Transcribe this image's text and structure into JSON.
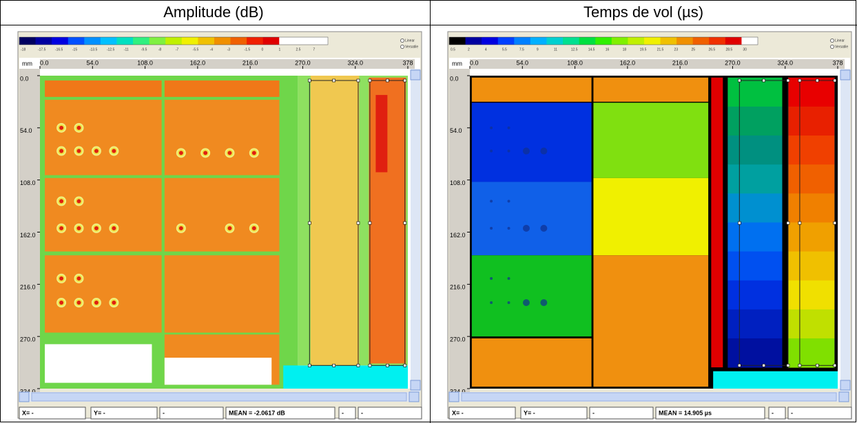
{
  "panels": [
    {
      "title": "Amplitude (dB)",
      "colorbar_labels": [
        "-18",
        "-17.5",
        "-16.5",
        "-15",
        "-13.5",
        "-12.5",
        "-11",
        "-9.5",
        "-8",
        "-7",
        "-5.5",
        "-4",
        "-3",
        "-1.5",
        "0",
        "1",
        "2.5",
        "7"
      ],
      "options": [
        "Linear",
        "Versatile"
      ],
      "x_unit": "mm",
      "x_ticks": [
        "0.0",
        "54.0",
        "108.0",
        "162.0",
        "216.0",
        "270.0",
        "324.0",
        "378"
      ],
      "y_ticks": [
        "0.0",
        "54.0",
        "108.0",
        "162.0",
        "216.0",
        "270.0",
        "324.0"
      ],
      "status": [
        "X= -",
        "Y= -",
        "-",
        "MEAN = -2.0617 dB",
        "-",
        "-"
      ]
    },
    {
      "title": "Temps de vol (µs)",
      "colorbar_labels": [
        "0.5",
        "2",
        "4",
        "5.5",
        "7.5",
        "9",
        "11",
        "12.5",
        "14.5",
        "16",
        "18",
        "19.5",
        "21.5",
        "23",
        "25",
        "26.5",
        "28.5",
        "30"
      ],
      "options": [
        "Linear",
        "Versatile"
      ],
      "x_unit": "mm",
      "x_ticks": [
        "0.0",
        "54.0",
        "108.0",
        "162.0",
        "216.0",
        "270.0",
        "324.0",
        "378"
      ],
      "y_ticks": [
        "0.0",
        "54.0",
        "108.0",
        "162.0",
        "216.0",
        "270.0",
        "324.0"
      ],
      "status": [
        "X= -",
        "Y= -",
        "-",
        "MEAN = 14.905 µs",
        "-",
        "-"
      ]
    }
  ]
}
